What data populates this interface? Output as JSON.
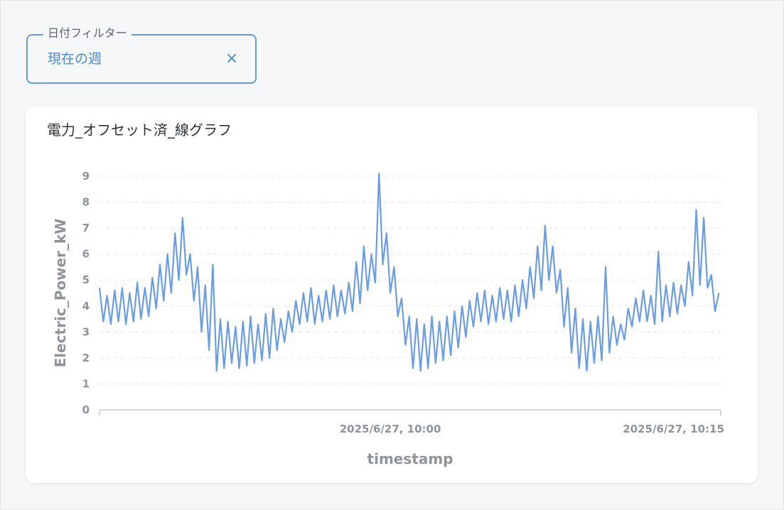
{
  "filter": {
    "label": "日付フィルター",
    "value": "現在の週",
    "clear_icon": "×"
  },
  "card": {
    "title": "電力_オフセット済_線グラフ"
  },
  "chart_data": {
    "type": "line",
    "title": "電力_オフセット済_線グラフ",
    "xlabel": "timestamp",
    "ylabel": "Electric_Power_kW",
    "ylim": [
      0,
      9
    ],
    "yticks": [
      0,
      1,
      2,
      3,
      4,
      5,
      6,
      7,
      8,
      9
    ],
    "x_ticks": [
      {
        "label": "2025/6/27, 10:00",
        "minute": 0
      },
      {
        "label": "2025/6/27, 10:15",
        "minute": 15
      }
    ],
    "x_start_minute": -15.4,
    "x_end_minute": 17.5,
    "grid": "horizontal-dashed",
    "line_color": "#6b9de0",
    "series": [
      {
        "name": "",
        "points": [
          [
            -15.4,
            4.7
          ],
          [
            -15.2,
            3.4
          ],
          [
            -15.0,
            4.4
          ],
          [
            -14.8,
            3.3
          ],
          [
            -14.6,
            4.6
          ],
          [
            -14.4,
            3.4
          ],
          [
            -14.2,
            4.7
          ],
          [
            -14.0,
            3.3
          ],
          [
            -13.8,
            4.5
          ],
          [
            -13.6,
            3.4
          ],
          [
            -13.4,
            4.9
          ],
          [
            -13.2,
            3.5
          ],
          [
            -13.0,
            4.7
          ],
          [
            -12.8,
            3.6
          ],
          [
            -12.6,
            5.1
          ],
          [
            -12.4,
            3.9
          ],
          [
            -12.2,
            5.6
          ],
          [
            -12.0,
            4.2
          ],
          [
            -11.8,
            6.0
          ],
          [
            -11.6,
            4.5
          ],
          [
            -11.4,
            6.8
          ],
          [
            -11.2,
            5.0
          ],
          [
            -11.0,
            7.4
          ],
          [
            -10.8,
            5.2
          ],
          [
            -10.6,
            6.0
          ],
          [
            -10.4,
            4.2
          ],
          [
            -10.2,
            5.5
          ],
          [
            -10.0,
            3.0
          ],
          [
            -9.8,
            4.8
          ],
          [
            -9.6,
            2.3
          ],
          [
            -9.4,
            5.6
          ],
          [
            -9.2,
            1.5
          ],
          [
            -9.0,
            3.5
          ],
          [
            -8.8,
            1.6
          ],
          [
            -8.6,
            3.4
          ],
          [
            -8.4,
            1.8
          ],
          [
            -8.2,
            3.2
          ],
          [
            -8.0,
            1.6
          ],
          [
            -7.8,
            3.4
          ],
          [
            -7.6,
            1.7
          ],
          [
            -7.4,
            3.6
          ],
          [
            -7.2,
            1.8
          ],
          [
            -7.0,
            3.3
          ],
          [
            -6.8,
            1.9
          ],
          [
            -6.6,
            3.7
          ],
          [
            -6.4,
            2.0
          ],
          [
            -6.2,
            3.9
          ],
          [
            -6.0,
            2.3
          ],
          [
            -5.8,
            3.5
          ],
          [
            -5.6,
            2.6
          ],
          [
            -5.4,
            3.8
          ],
          [
            -5.2,
            3.0
          ],
          [
            -5.0,
            4.2
          ],
          [
            -4.8,
            3.3
          ],
          [
            -4.6,
            4.5
          ],
          [
            -4.4,
            3.4
          ],
          [
            -4.2,
            4.7
          ],
          [
            -4.0,
            3.3
          ],
          [
            -3.8,
            4.4
          ],
          [
            -3.6,
            3.4
          ],
          [
            -3.4,
            4.6
          ],
          [
            -3.2,
            3.5
          ],
          [
            -3.0,
            4.8
          ],
          [
            -2.8,
            3.6
          ],
          [
            -2.6,
            4.6
          ],
          [
            -2.4,
            3.7
          ],
          [
            -2.2,
            4.9
          ],
          [
            -2.0,
            3.8
          ],
          [
            -1.8,
            5.7
          ],
          [
            -1.6,
            4.1
          ],
          [
            -1.4,
            6.3
          ],
          [
            -1.2,
            4.6
          ],
          [
            -1.0,
            6.0
          ],
          [
            -0.8,
            4.9
          ],
          [
            -0.6,
            9.1
          ],
          [
            -0.4,
            5.6
          ],
          [
            -0.2,
            6.8
          ],
          [
            0.0,
            4.5
          ],
          [
            0.2,
            5.5
          ],
          [
            0.4,
            3.6
          ],
          [
            0.6,
            4.3
          ],
          [
            0.8,
            2.5
          ],
          [
            1.0,
            3.6
          ],
          [
            1.2,
            1.6
          ],
          [
            1.4,
            3.5
          ],
          [
            1.6,
            1.5
          ],
          [
            1.8,
            3.3
          ],
          [
            2.0,
            1.6
          ],
          [
            2.2,
            3.6
          ],
          [
            2.4,
            1.8
          ],
          [
            2.6,
            3.4
          ],
          [
            2.8,
            1.9
          ],
          [
            3.0,
            3.6
          ],
          [
            3.2,
            2.1
          ],
          [
            3.4,
            3.8
          ],
          [
            3.6,
            2.4
          ],
          [
            3.8,
            4.0
          ],
          [
            4.0,
            2.8
          ],
          [
            4.2,
            4.2
          ],
          [
            4.4,
            3.2
          ],
          [
            4.6,
            4.5
          ],
          [
            4.8,
            3.4
          ],
          [
            5.0,
            4.6
          ],
          [
            5.2,
            3.3
          ],
          [
            5.4,
            4.4
          ],
          [
            5.6,
            3.4
          ],
          [
            5.8,
            4.7
          ],
          [
            6.0,
            3.5
          ],
          [
            6.2,
            4.6
          ],
          [
            6.4,
            3.4
          ],
          [
            6.6,
            4.8
          ],
          [
            6.8,
            3.6
          ],
          [
            7.0,
            5.0
          ],
          [
            7.2,
            3.9
          ],
          [
            7.4,
            5.5
          ],
          [
            7.6,
            4.3
          ],
          [
            7.8,
            6.3
          ],
          [
            8.0,
            4.6
          ],
          [
            8.2,
            7.1
          ],
          [
            8.4,
            5.0
          ],
          [
            8.6,
            6.3
          ],
          [
            8.8,
            4.5
          ],
          [
            9.0,
            5.4
          ],
          [
            9.2,
            3.2
          ],
          [
            9.4,
            4.7
          ],
          [
            9.6,
            2.2
          ],
          [
            9.8,
            3.9
          ],
          [
            10.0,
            1.6
          ],
          [
            10.2,
            3.5
          ],
          [
            10.4,
            1.5
          ],
          [
            10.6,
            3.4
          ],
          [
            10.8,
            1.8
          ],
          [
            11.0,
            3.6
          ],
          [
            11.2,
            1.9
          ],
          [
            11.4,
            5.5
          ],
          [
            11.6,
            2.2
          ],
          [
            11.8,
            3.6
          ],
          [
            12.0,
            2.5
          ],
          [
            12.2,
            3.3
          ],
          [
            12.4,
            2.7
          ],
          [
            12.6,
            3.9
          ],
          [
            12.8,
            3.2
          ],
          [
            13.0,
            4.3
          ],
          [
            13.2,
            3.4
          ],
          [
            13.4,
            4.6
          ],
          [
            13.6,
            3.4
          ],
          [
            13.8,
            4.4
          ],
          [
            14.0,
            3.3
          ],
          [
            14.2,
            6.1
          ],
          [
            14.4,
            3.4
          ],
          [
            14.6,
            4.8
          ],
          [
            14.8,
            3.6
          ],
          [
            15.0,
            4.9
          ],
          [
            15.2,
            3.7
          ],
          [
            15.4,
            4.8
          ],
          [
            15.6,
            4.0
          ],
          [
            15.8,
            5.7
          ],
          [
            16.0,
            4.4
          ],
          [
            16.2,
            7.7
          ],
          [
            16.4,
            4.8
          ],
          [
            16.6,
            7.4
          ],
          [
            16.8,
            4.7
          ],
          [
            17.0,
            5.2
          ],
          [
            17.2,
            3.8
          ],
          [
            17.4,
            4.5
          ]
        ]
      }
    ]
  }
}
